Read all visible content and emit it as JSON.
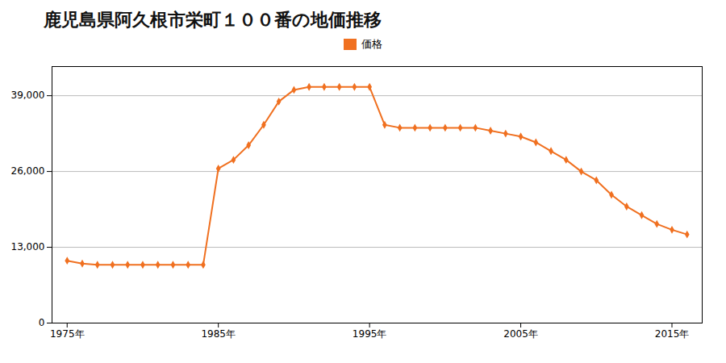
{
  "chart_data": {
    "type": "line",
    "title": "鹿児島県阿久根市栄町１００番の地価推移",
    "x": [
      1975,
      1976,
      1977,
      1978,
      1979,
      1980,
      1981,
      1982,
      1983,
      1984,
      1985,
      1986,
      1987,
      1988,
      1989,
      1990,
      1991,
      1992,
      1993,
      1994,
      1995,
      1996,
      1997,
      1998,
      1999,
      2000,
      2001,
      2002,
      2003,
      2004,
      2005,
      2006,
      2007,
      2008,
      2009,
      2010,
      2011,
      2012,
      2013,
      2014,
      2015,
      2016
    ],
    "series": [
      {
        "name": "価格",
        "color": "#f07020",
        "marker": "diamond",
        "values": [
          10700,
          10200,
          10000,
          10000,
          10000,
          10000,
          10000,
          10000,
          10000,
          10000,
          26500,
          28000,
          30500,
          34000,
          38000,
          40000,
          40500,
          40500,
          40500,
          40500,
          40500,
          34000,
          33500,
          33500,
          33500,
          33500,
          33500,
          33500,
          33000,
          32500,
          32000,
          31000,
          29500,
          28000,
          26000,
          24500,
          22000,
          20000,
          18500,
          17000,
          16000,
          15200
        ]
      }
    ],
    "xlim": [
      1974,
      2017
    ],
    "xticks": [
      {
        "value": 1975,
        "label": "1975年"
      },
      {
        "value": 1985,
        "label": "1985年"
      },
      {
        "value": 1995,
        "label": "1995年"
      },
      {
        "value": 2005,
        "label": "2005年"
      },
      {
        "value": 2015,
        "label": "2015年"
      }
    ],
    "ylim": [
      0,
      44000
    ],
    "yticks": [
      0,
      {
        "value": 13000,
        "label": "13,000"
      },
      {
        "value": 26000,
        "label": "26,000"
      },
      {
        "value": 39000,
        "label": "39,000"
      }
    ],
    "grid": "y",
    "legend": "top"
  }
}
